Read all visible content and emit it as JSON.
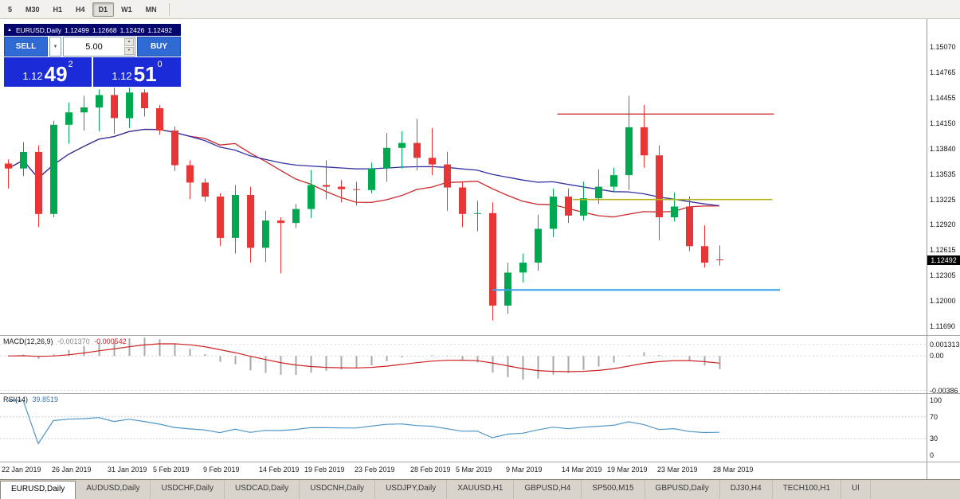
{
  "colors": {
    "up": "#00a94f",
    "down": "#e83535",
    "ma_fast": "#cc2929",
    "ma_slow": "#3030a0",
    "hline_red": "#c93030",
    "hline_yellow": "#b3b31f",
    "hline_blue": "#3da0e8",
    "macd_hist": "#a9a9a9",
    "macd_signal": "#cc2222",
    "rsi": "#4f96c8",
    "panel_header_bg": "#05056e",
    "panel_button_bg": "#2f6ad4",
    "panel_price_bg": "#1b2bd8",
    "badge_bg": "#000000"
  },
  "icons": {
    "collapse": "▲",
    "spin_up": "▲",
    "spin_down": "▼",
    "preset_caret": "▼"
  },
  "toolbar": {
    "timeframes": [
      {
        "label": "5",
        "active": false
      },
      {
        "label": "M30",
        "active": false
      },
      {
        "label": "H1",
        "active": false
      },
      {
        "label": "H4",
        "active": false
      },
      {
        "label": "D1",
        "active": true
      },
      {
        "label": "W1",
        "active": false
      },
      {
        "label": "MN",
        "active": false
      }
    ]
  },
  "trade_panel": {
    "symbol": "EURUSD,Daily",
    "open": "1.12499",
    "high": "1.12668",
    "low": "1.12426",
    "close": "1.12492",
    "sell_label": "SELL",
    "buy_label": "BUY",
    "volume": "5.00",
    "sell_price": {
      "base": "1.12",
      "big": "49",
      "sup": "2"
    },
    "buy_price": {
      "base": "1.12",
      "big": "51",
      "sup": "0"
    }
  },
  "chart_data": {
    "type": "candlestick",
    "title": "EURUSD,Daily",
    "symbol": "EURUSD",
    "timeframe": "Daily",
    "current_price": {
      "t": "1.12492",
      "v": 1.12492
    },
    "price_axis": [
      {
        "t": "1.15070",
        "v": 1.1507
      },
      {
        "t": "1.14765",
        "v": 1.14765
      },
      {
        "t": "1.14455",
        "v": 1.14455
      },
      {
        "t": "1.14150",
        "v": 1.1415
      },
      {
        "t": "1.13840",
        "v": 1.1384
      },
      {
        "t": "1.13535",
        "v": 1.13535
      },
      {
        "t": "1.13225",
        "v": 1.13225
      },
      {
        "t": "1.12920",
        "v": 1.1292
      },
      {
        "t": "1.12615",
        "v": 1.12615
      },
      {
        "t": "1.12305",
        "v": 1.12305
      },
      {
        "t": "1.12000",
        "v": 1.12
      },
      {
        "t": "1.11690",
        "v": 1.1169
      }
    ],
    "date_axis": [
      {
        "t": "22 Jan 2019",
        "i": 0
      },
      {
        "t": "26 Jan 2019",
        "i": 3.33
      },
      {
        "t": "31 Jan 2019",
        "i": 7
      },
      {
        "t": "5 Feb 2019",
        "i": 10
      },
      {
        "t": "9 Feb 2019",
        "i": 13.33
      },
      {
        "t": "14 Feb 2019",
        "i": 17
      },
      {
        "t": "19 Feb 2019",
        "i": 20
      },
      {
        "t": "23 Feb 2019",
        "i": 23.33
      },
      {
        "t": "28 Feb 2019",
        "i": 27
      },
      {
        "t": "5 Mar 2019",
        "i": 30
      },
      {
        "t": "9 Mar 2019",
        "i": 33.33
      },
      {
        "t": "14 Mar 2019",
        "i": 37
      },
      {
        "t": "19 Mar 2019",
        "i": 40
      },
      {
        "t": "23 Mar 2019",
        "i": 43.33
      },
      {
        "t": "28 Mar 2019",
        "i": 47
      }
    ],
    "candles": [
      {
        "d": "22 Jan",
        "o": 1.1366,
        "h": 1.1371,
        "l": 1.1336,
        "c": 1.136
      },
      {
        "d": "23 Jan",
        "o": 1.136,
        "h": 1.1392,
        "l": 1.1351,
        "c": 1.138
      },
      {
        "d": "24 Jan",
        "o": 1.138,
        "h": 1.1388,
        "l": 1.1289,
        "c": 1.1305
      },
      {
        "d": "25 Jan",
        "o": 1.1305,
        "h": 1.1418,
        "l": 1.1301,
        "c": 1.1413
      },
      {
        "d": "28 Jan",
        "o": 1.1413,
        "h": 1.144,
        "l": 1.139,
        "c": 1.1428
      },
      {
        "d": "29 Jan",
        "o": 1.1428,
        "h": 1.1448,
        "l": 1.1406,
        "c": 1.1434
      },
      {
        "d": "30 Jan",
        "o": 1.1434,
        "h": 1.1456,
        "l": 1.1405,
        "c": 1.1449
      },
      {
        "d": "31 Jan",
        "o": 1.1449,
        "h": 1.1458,
        "l": 1.1402,
        "c": 1.1421
      },
      {
        "d": "1 Feb",
        "o": 1.1421,
        "h": 1.1458,
        "l": 1.1409,
        "c": 1.1452
      },
      {
        "d": "4 Feb",
        "o": 1.1452,
        "h": 1.1456,
        "l": 1.1423,
        "c": 1.1433
      },
      {
        "d": "5 Feb",
        "o": 1.1433,
        "h": 1.1437,
        "l": 1.1401,
        "c": 1.1406
      },
      {
        "d": "6 Feb",
        "o": 1.1406,
        "h": 1.1411,
        "l": 1.1357,
        "c": 1.1364
      },
      {
        "d": "7 Feb",
        "o": 1.1364,
        "h": 1.137,
        "l": 1.1323,
        "c": 1.1343
      },
      {
        "d": "8 Feb",
        "o": 1.1343,
        "h": 1.1348,
        "l": 1.132,
        "c": 1.1326
      },
      {
        "d": "11 Feb",
        "o": 1.1326,
        "h": 1.133,
        "l": 1.1266,
        "c": 1.1276
      },
      {
        "d": "12 Feb",
        "o": 1.1276,
        "h": 1.134,
        "l": 1.1257,
        "c": 1.1328
      },
      {
        "d": "13 Feb",
        "o": 1.1328,
        "h": 1.1338,
        "l": 1.1246,
        "c": 1.1264
      },
      {
        "d": "14 Feb",
        "o": 1.1264,
        "h": 1.1309,
        "l": 1.1247,
        "c": 1.1297
      },
      {
        "d": "15 Feb",
        "o": 1.1297,
        "h": 1.1301,
        "l": 1.1233,
        "c": 1.1294
      },
      {
        "d": "18 Feb",
        "o": 1.1294,
        "h": 1.1317,
        "l": 1.1288,
        "c": 1.1311
      },
      {
        "d": "19 Feb",
        "o": 1.1311,
        "h": 1.1358,
        "l": 1.13,
        "c": 1.134
      },
      {
        "d": "20 Feb",
        "o": 1.134,
        "h": 1.137,
        "l": 1.1323,
        "c": 1.1338
      },
      {
        "d": "21 Feb",
        "o": 1.1338,
        "h": 1.1346,
        "l": 1.1319,
        "c": 1.1335
      },
      {
        "d": "22 Feb",
        "o": 1.1335,
        "h": 1.1344,
        "l": 1.1315,
        "c": 1.1334
      },
      {
        "d": "25 Feb",
        "o": 1.1334,
        "h": 1.1367,
        "l": 1.133,
        "c": 1.136
      },
      {
        "d": "26 Feb",
        "o": 1.136,
        "h": 1.1403,
        "l": 1.1344,
        "c": 1.1385
      },
      {
        "d": "27 Feb",
        "o": 1.1385,
        "h": 1.1405,
        "l": 1.136,
        "c": 1.1391
      },
      {
        "d": "28 Feb",
        "o": 1.1391,
        "h": 1.142,
        "l": 1.1358,
        "c": 1.1373
      },
      {
        "d": "1 Mar",
        "o": 1.1373,
        "h": 1.1409,
        "l": 1.1352,
        "c": 1.1365
      },
      {
        "d": "4 Mar",
        "o": 1.1365,
        "h": 1.138,
        "l": 1.1309,
        "c": 1.1337
      },
      {
        "d": "5 Mar",
        "o": 1.1337,
        "h": 1.1344,
        "l": 1.1289,
        "c": 1.1305
      },
      {
        "d": "6 Mar",
        "o": 1.1305,
        "h": 1.1321,
        "l": 1.1284,
        "c": 1.1306
      },
      {
        "d": "7 Mar",
        "o": 1.1306,
        "h": 1.1319,
        "l": 1.1176,
        "c": 1.1194
      },
      {
        "d": "8 Mar",
        "o": 1.1194,
        "h": 1.1246,
        "l": 1.1184,
        "c": 1.1234
      },
      {
        "d": "11 Mar",
        "o": 1.1234,
        "h": 1.1257,
        "l": 1.1222,
        "c": 1.1246
      },
      {
        "d": "12 Mar",
        "o": 1.1246,
        "h": 1.1304,
        "l": 1.1236,
        "c": 1.1287
      },
      {
        "d": "13 Mar",
        "o": 1.1287,
        "h": 1.1336,
        "l": 1.1277,
        "c": 1.1326
      },
      {
        "d": "14 Mar",
        "o": 1.1326,
        "h": 1.1336,
        "l": 1.1294,
        "c": 1.1303
      },
      {
        "d": "15 Mar",
        "o": 1.1303,
        "h": 1.1344,
        "l": 1.1297,
        "c": 1.1324
      },
      {
        "d": "18 Mar",
        "o": 1.1324,
        "h": 1.1359,
        "l": 1.1317,
        "c": 1.1338
      },
      {
        "d": "19 Mar",
        "o": 1.1338,
        "h": 1.1361,
        "l": 1.1332,
        "c": 1.1352
      },
      {
        "d": "20 Mar",
        "o": 1.1352,
        "h": 1.1448,
        "l": 1.1334,
        "c": 1.141
      },
      {
        "d": "21 Mar",
        "o": 1.141,
        "h": 1.1437,
        "l": 1.1361,
        "c": 1.1376
      },
      {
        "d": "22 Mar",
        "o": 1.1376,
        "h": 1.1388,
        "l": 1.1273,
        "c": 1.1301
      },
      {
        "d": "25 Mar",
        "o": 1.1301,
        "h": 1.1331,
        "l": 1.1296,
        "c": 1.1314
      },
      {
        "d": "26 Mar",
        "o": 1.1314,
        "h": 1.1326,
        "l": 1.126,
        "c": 1.1266
      },
      {
        "d": "27 Mar",
        "o": 1.1266,
        "h": 1.1291,
        "l": 1.124,
        "c": 1.1246
      },
      {
        "d": "28 Mar",
        "o": 1.12499,
        "h": 1.12668,
        "l": 1.12426,
        "c": 1.12492
      }
    ],
    "hlines": [
      {
        "v": 1.1426,
        "from": 36.3,
        "to": 50.6,
        "color": "hline_red",
        "w": 1.4
      },
      {
        "v": 1.13225,
        "from": 37.3,
        "to": 50.5,
        "color": "hline_yellow",
        "w": 1.6
      },
      {
        "v": 1.1213,
        "from": 32.0,
        "to": 51.0,
        "color": "hline_blue",
        "w": 2.2
      }
    ],
    "moving_averages": [
      {
        "type": "sma",
        "period": 13,
        "color": "ma_fast"
      },
      {
        "type": "sma",
        "period": 34,
        "color": "ma_slow"
      }
    ],
    "indicators": {
      "macd": {
        "label": "MACD(12,26,9)",
        "value_main": "-0.001370",
        "value_signal": "-0.000542",
        "fast": 12,
        "slow": 26,
        "signal": 9,
        "axis": [
          {
            "t": "0.001313",
            "v": 0.001313
          },
          {
            "t": "0.00",
            "v": 0
          },
          {
            "t": "-0.00386",
            "v": -0.00386
          }
        ]
      },
      "rsi": {
        "label": "RSI(14)",
        "value": "39.8519",
        "period": 14,
        "levels": [
          70,
          30
        ],
        "axis": [
          {
            "t": "100",
            "v": 100
          },
          {
            "t": "70",
            "v": 70
          },
          {
            "t": "30",
            "v": 30
          },
          {
            "t": "0",
            "v": 0
          }
        ]
      }
    }
  },
  "tabs": [
    {
      "label": "EURUSD,Daily",
      "active": true
    },
    {
      "label": "AUDUSD,Daily",
      "active": false
    },
    {
      "label": "USDCHF,Daily",
      "active": false
    },
    {
      "label": "USDCAD,Daily",
      "active": false
    },
    {
      "label": "USDCNH,Daily",
      "active": false
    },
    {
      "label": "USDJPY,Daily",
      "active": false
    },
    {
      "label": "XAUUSD,H1",
      "active": false
    },
    {
      "label": "GBPUSD,H4",
      "active": false
    },
    {
      "label": "SP500,M15",
      "active": false
    },
    {
      "label": "GBPUSD,Daily",
      "active": false
    },
    {
      "label": "DJ30,H4",
      "active": false
    },
    {
      "label": "TECH100,H1",
      "active": false
    },
    {
      "label": "Ul",
      "active": false
    }
  ]
}
